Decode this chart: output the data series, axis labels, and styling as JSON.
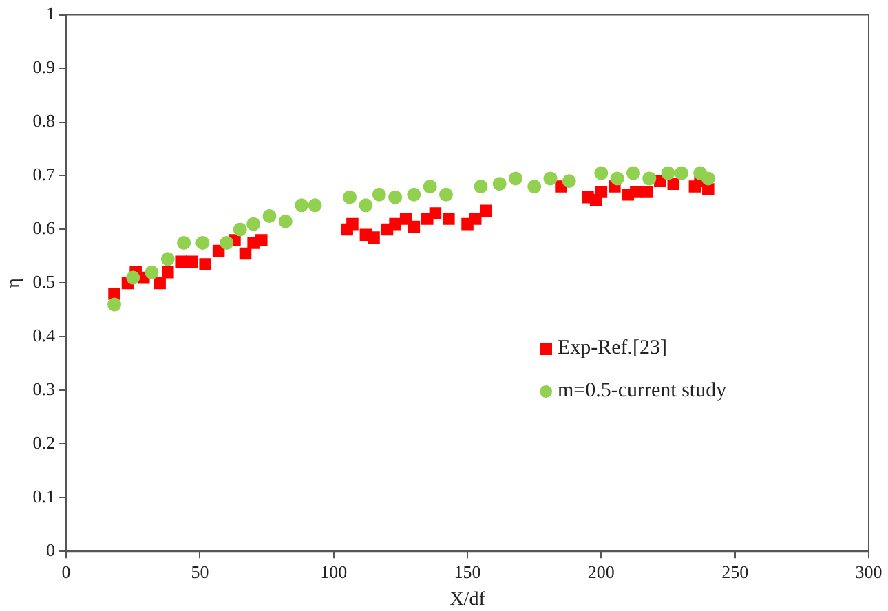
{
  "chart_data": {
    "type": "scatter",
    "xlabel": "X/df",
    "ylabel": "η",
    "xlim": [
      0,
      300
    ],
    "xticks": [
      0,
      50,
      100,
      150,
      200,
      250,
      300
    ],
    "ylim": [
      0,
      1
    ],
    "yticks": [
      0,
      0.1,
      0.2,
      0.3,
      0.4,
      0.5,
      0.6,
      0.7,
      0.8,
      0.9,
      1
    ],
    "grid": false,
    "legend": "right",
    "series": [
      {
        "name": "Exp-Ref.[23]",
        "color": "#ff0000",
        "marker": "square",
        "x": [
          18,
          23,
          26,
          29,
          35,
          38,
          43,
          47,
          52,
          57,
          63,
          67,
          70,
          73,
          105,
          107,
          112,
          115,
          120,
          123,
          127,
          130,
          135,
          138,
          143,
          150,
          153,
          157,
          185,
          195,
          198,
          200,
          205,
          210,
          213,
          217,
          222,
          227,
          235,
          237,
          240
        ],
        "values": [
          0.48,
          0.5,
          0.52,
          0.51,
          0.5,
          0.52,
          0.54,
          0.54,
          0.535,
          0.56,
          0.58,
          0.555,
          0.575,
          0.58,
          0.6,
          0.61,
          0.59,
          0.585,
          0.6,
          0.61,
          0.62,
          0.605,
          0.62,
          0.63,
          0.62,
          0.61,
          0.62,
          0.635,
          0.68,
          0.66,
          0.655,
          0.67,
          0.68,
          0.665,
          0.67,
          0.67,
          0.69,
          0.685,
          0.68,
          0.69,
          0.675
        ]
      },
      {
        "name": "m=0.5-current study",
        "color": "#92d050",
        "marker": "circle",
        "x": [
          18,
          25,
          32,
          38,
          44,
          51,
          60,
          65,
          70,
          76,
          82,
          88,
          93,
          106,
          112,
          117,
          123,
          130,
          136,
          142,
          155,
          162,
          168,
          175,
          181,
          188,
          200,
          206,
          212,
          218,
          225,
          230,
          237,
          240
        ],
        "values": [
          0.46,
          0.51,
          0.52,
          0.545,
          0.575,
          0.575,
          0.575,
          0.6,
          0.61,
          0.625,
          0.615,
          0.645,
          0.645,
          0.66,
          0.645,
          0.665,
          0.66,
          0.665,
          0.68,
          0.665,
          0.68,
          0.685,
          0.695,
          0.68,
          0.695,
          0.69,
          0.705,
          0.695,
          0.705,
          0.695,
          0.705,
          0.705,
          0.705,
          0.695
        ]
      }
    ]
  }
}
